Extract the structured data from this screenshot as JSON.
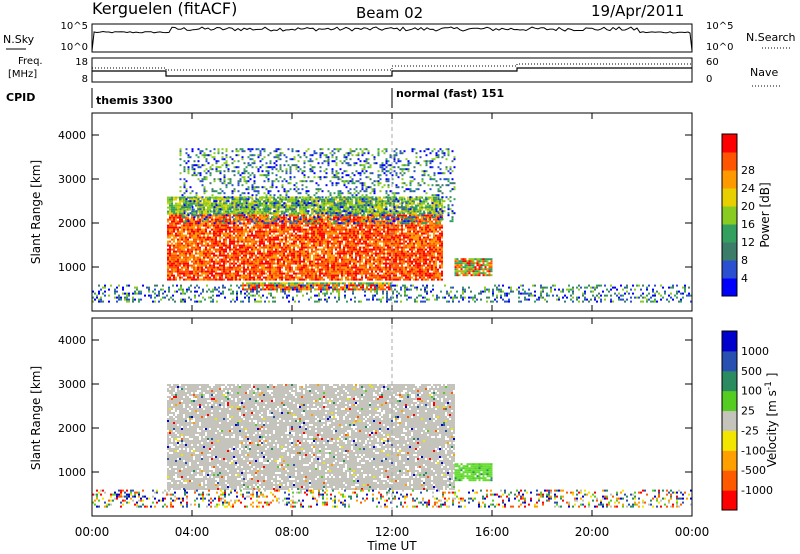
{
  "header": {
    "station": "Kerguelen (fitACF)",
    "beam": "Beam 02",
    "date": "19/Apr/2011"
  },
  "colors": {
    "power_scale": [
      "#0000ff",
      "#2a4fd0",
      "#3c7d6a",
      "#33a060",
      "#88cc22",
      "#e8d000",
      "#ff9900",
      "#ff5500",
      "#ff0000"
    ],
    "velocity_scale": [
      "#ff0000",
      "#ff5a00",
      "#ffa000",
      "#f2e600",
      "#c4c4bc",
      "#55cc22",
      "#2a8a60",
      "#2750b0",
      "#0000cc"
    ],
    "ground_scatter": "#c4c4bc"
  },
  "summary_panel": {
    "nsky_label": "N.Sky",
    "nsky_ticks": [
      "10^5",
      "10^0"
    ],
    "nsearch_label": "N.Search",
    "nsearch_ticks": [
      "10^5",
      "10^0"
    ],
    "freq_label_line1": "Freq.",
    "freq_label_line2": "[MHz]",
    "freq_ticks": [
      "18",
      "8"
    ],
    "nave_label": "Nave",
    "nave_ticks": [
      "60",
      "0"
    ],
    "cpid_label": "CPID",
    "cpid_modes": [
      {
        "label": "themis 3300",
        "start_hour": 0
      },
      {
        "label": "normal (fast) 151",
        "start_hour": 12
      }
    ]
  },
  "chart_data": [
    {
      "type": "heatmap",
      "title": "",
      "xlabel": "Time UT",
      "ylabel": "Slant Range [km]",
      "colorbar_label": "Power [dB]",
      "colorbar_ticks": [
        "4",
        "8",
        "12",
        "16",
        "20",
        "24",
        "28"
      ],
      "x_ticks": [
        "00:00",
        "04:00",
        "08:00",
        "12:00",
        "16:00",
        "20:00",
        "00:00"
      ],
      "y_ticks": [
        "1000",
        "2000",
        "3000",
        "4000"
      ],
      "xlim_hours": [
        0,
        24
      ],
      "ylim_km": [
        0,
        4500
      ],
      "regions": [
        {
          "start_hour": 3.0,
          "end_hour": 14.0,
          "min_km": 700,
          "max_km": 2600,
          "level": "high"
        },
        {
          "start_hour": 6.0,
          "end_hour": 12.0,
          "min_km": 500,
          "max_km": 650,
          "level": "high"
        },
        {
          "start_hour": 14.5,
          "end_hour": 16.0,
          "min_km": 800,
          "max_km": 1200,
          "level": "mixed"
        },
        {
          "start_hour": 3.5,
          "end_hour": 14.5,
          "min_km": 2000,
          "max_km": 3700,
          "level": "low"
        },
        {
          "start_hour": 0.0,
          "end_hour": 24.0,
          "min_km": 200,
          "max_km": 600,
          "level": "low"
        }
      ]
    },
    {
      "type": "heatmap",
      "title": "",
      "xlabel": "Time UT",
      "ylabel": "Slant Range [km]",
      "colorbar_label": "Velocity [m s^-1]",
      "colorbar_ticks": [
        "-1000",
        "-500",
        "-100",
        "-25",
        "25",
        "100",
        "500",
        "1000"
      ],
      "x_ticks": [
        "00:00",
        "04:00",
        "08:00",
        "12:00",
        "16:00",
        "20:00",
        "00:00"
      ],
      "y_ticks": [
        "1000",
        "2000",
        "3000",
        "4000"
      ],
      "xlim_hours": [
        0,
        24
      ],
      "ylim_km": [
        0,
        4500
      ],
      "regions": [
        {
          "start_hour": 3.0,
          "end_hour": 14.5,
          "min_km": 600,
          "max_km": 3000,
          "level": "ground"
        },
        {
          "start_hour": 14.5,
          "end_hour": 16.0,
          "min_km": 800,
          "max_km": 1200,
          "level": "positive"
        },
        {
          "start_hour": 0.0,
          "end_hour": 24.0,
          "min_km": 200,
          "max_km": 600,
          "level": "mixed"
        }
      ]
    }
  ]
}
